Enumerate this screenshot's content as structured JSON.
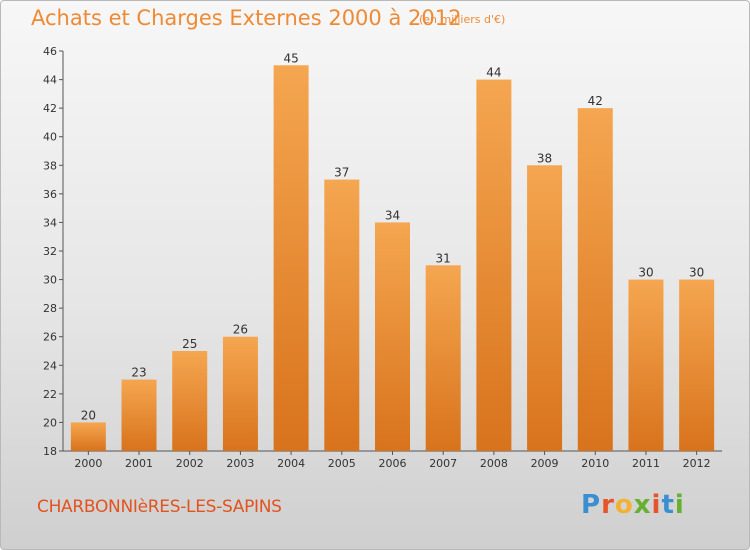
{
  "header": {
    "title": "Achats et Charges Externes 2000 à 2012",
    "subtitle": "(en milliers d'€)"
  },
  "footer": {
    "commune": "CHARBONNIèRES-LES-SAPINS",
    "logo": [
      "P",
      "r",
      "o",
      "x",
      "i",
      "t",
      "i"
    ]
  },
  "colors": {
    "bar_light": "#f5a650",
    "bar_dark": "#d8731c",
    "text": "#333333",
    "accent": "#ee8a34",
    "logo": [
      "#3a8fd1",
      "#e8542a",
      "#f2b134",
      "#66b030",
      "#e8542a",
      "#3a8fd1",
      "#66b030"
    ]
  },
  "chart_data": {
    "type": "bar",
    "title": "Achats et Charges Externes 2000 à 2012",
    "subtitle": "(en milliers d'€)",
    "categories": [
      "2000",
      "2001",
      "2002",
      "2003",
      "2004",
      "2005",
      "2006",
      "2007",
      "2008",
      "2009",
      "2010",
      "2011",
      "2012"
    ],
    "values": [
      20,
      23,
      25,
      26,
      45,
      37,
      34,
      31,
      44,
      38,
      42,
      30,
      30
    ],
    "ylim": [
      18,
      46
    ],
    "yticks": [
      18,
      20,
      22,
      24,
      26,
      28,
      30,
      32,
      34,
      36,
      38,
      40,
      42,
      44,
      46
    ],
    "grid": false,
    "legend": "none"
  }
}
